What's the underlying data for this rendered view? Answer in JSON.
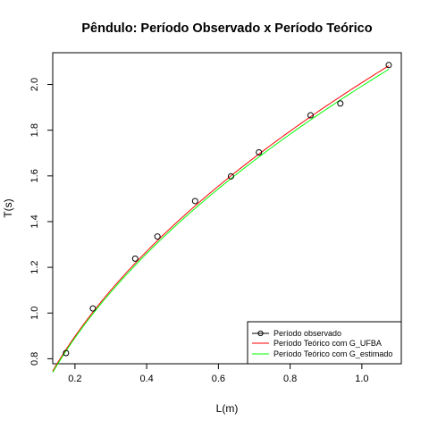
{
  "chart_data": {
    "type": "scatter",
    "title": "Pêndulo: Período Observado x Período Teórico",
    "xlabel": "L(m)",
    "ylabel": "T(s)",
    "xlim": [
      0.138,
      1.11
    ],
    "ylim": [
      0.778,
      2.139
    ],
    "xticks": [
      0.2,
      0.4,
      0.6,
      0.8,
      1.0
    ],
    "xtick_labels": [
      "0.2",
      "0.4",
      "0.6",
      "0.8",
      "1.0"
    ],
    "yticks": [
      0.8,
      1.0,
      1.2,
      1.4,
      1.6,
      1.8,
      2.0
    ],
    "ytick_labels": [
      "0.8",
      "1.0",
      "1.2",
      "1.4",
      "1.6",
      "1.8",
      "2.0"
    ],
    "grid": false,
    "legend_position": "bottom-right",
    "points": {
      "name": "Período observado",
      "x": [
        0.175,
        0.25,
        0.368,
        0.43,
        0.535,
        0.635,
        0.713,
        0.857,
        0.94,
        1.075
      ],
      "y": [
        0.825,
        1.02,
        1.238,
        1.335,
        1.49,
        1.598,
        1.703,
        1.865,
        1.917,
        2.085
      ]
    },
    "curves": [
      {
        "name": "Período Teórico com G_UFBA",
        "color": "#ff0000",
        "coef": 2.008,
        "x_range": [
          0.138,
          1.075
        ]
      },
      {
        "name": "Período Teórico com G_estimado",
        "color": "#00ff00",
        "coef": 1.993,
        "x_range": [
          0.138,
          1.075
        ]
      }
    ]
  }
}
